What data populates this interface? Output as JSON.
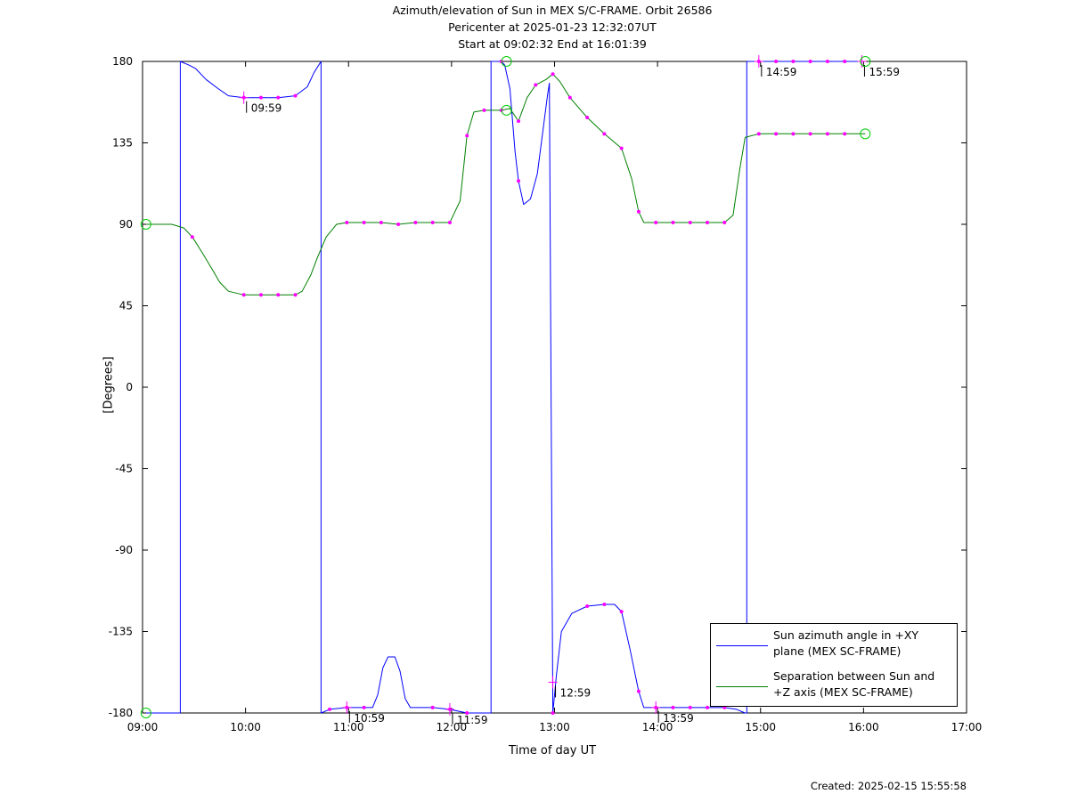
{
  "title_lines": [
    "Azimuth/elevation of Sun in MEX S/C-FRAME.  Orbit 26586",
    "Pericenter at 2025-01-23 12:32:07UT",
    "Start at 09:02:32 End at 16:01:39"
  ],
  "created": "Created: 2025-02-15 15:55:58",
  "colors": {
    "azimuth": "#0000ff",
    "separation": "#008000",
    "marker": "#ff00ff",
    "start_end": "#00cc00"
  },
  "chart_data": {
    "type": "line",
    "xlabel": "Time of day UT",
    "ylabel": "[Degrees]",
    "xlim": [
      "09:00",
      "17:00"
    ],
    "ylim": [
      -180,
      180
    ],
    "x_ticks": [
      "09:00",
      "10:00",
      "11:00",
      "12:00",
      "13:00",
      "14:00",
      "15:00",
      "16:00",
      "17:00"
    ],
    "y_ticks": [
      "180",
      "135",
      "90",
      "45",
      "0",
      "-45",
      "-90",
      "-135",
      "-180"
    ],
    "grid": false,
    "legend_position": "bottom-right",
    "series": [
      {
        "name": "Sun azimuth angle in +XY plane (MEX SC-FRAME)",
        "legend_lines": [
          "Sun azimuth angle in +XY",
          "plane (MEX SC-FRAME)"
        ],
        "color": "#0000ff",
        "points": [
          [
            "09:02",
            -180
          ],
          [
            "09:16",
            -180
          ],
          [
            "09:20",
            -180
          ],
          [
            "09:22",
            -180
          ],
          [
            "09:22",
            180
          ],
          [
            "09:27",
            178
          ],
          [
            "09:31",
            176
          ],
          [
            "09:37",
            170
          ],
          [
            "09:44",
            165
          ],
          [
            "09:50",
            161
          ],
          [
            "09:59",
            160
          ],
          [
            "10:09",
            160
          ],
          [
            "10:19",
            160
          ],
          [
            "10:29",
            161
          ],
          [
            "10:36",
            166
          ],
          [
            "10:40",
            174
          ],
          [
            "10:44",
            180
          ],
          [
            "10:44",
            -180
          ],
          [
            "10:49",
            -178
          ],
          [
            "10:59",
            -177
          ],
          [
            "11:09",
            -177
          ],
          [
            "11:14",
            -177
          ],
          [
            "11:17",
            -170
          ],
          [
            "11:20",
            -155
          ],
          [
            "11:23",
            -149
          ],
          [
            "11:27",
            -149
          ],
          [
            "11:30",
            -157
          ],
          [
            "11:33",
            -172
          ],
          [
            "11:36",
            -177
          ],
          [
            "11:49",
            -177
          ],
          [
            "11:59",
            -178
          ],
          [
            "12:09",
            -180
          ],
          [
            "12:20",
            -180
          ],
          [
            "12:23",
            -180
          ],
          [
            "12:23",
            180
          ],
          [
            "12:29",
            180
          ],
          [
            "12:31",
            178
          ],
          [
            "12:34",
            165
          ],
          [
            "12:37",
            130
          ],
          [
            "12:39",
            114
          ],
          [
            "12:42",
            101
          ],
          [
            "12:46",
            104
          ],
          [
            "12:50",
            118
          ],
          [
            "12:53",
            140
          ],
          [
            "12:56",
            162
          ],
          [
            "12:57",
            168
          ],
          [
            "12:59",
            -180
          ],
          [
            "13:01",
            -160
          ],
          [
            "13:04",
            -135
          ],
          [
            "13:10",
            -125
          ],
          [
            "13:19",
            -121
          ],
          [
            "13:29",
            -120
          ],
          [
            "13:35",
            -120
          ],
          [
            "13:39",
            -124
          ],
          [
            "13:44",
            -145
          ],
          [
            "13:49",
            -168
          ],
          [
            "13:52",
            -177
          ],
          [
            "13:59",
            -177
          ],
          [
            "14:09",
            -177
          ],
          [
            "14:19",
            -177
          ],
          [
            "14:29",
            -177
          ],
          [
            "14:39",
            -177
          ],
          [
            "14:46",
            -178
          ],
          [
            "14:51",
            -180
          ],
          [
            "14:52",
            -180
          ],
          [
            "14:52",
            180
          ],
          [
            "14:59",
            180
          ],
          [
            "15:09",
            180
          ],
          [
            "15:19",
            180
          ],
          [
            "15:29",
            180
          ],
          [
            "15:39",
            180
          ],
          [
            "15:49",
            180
          ],
          [
            "16:01",
            180
          ]
        ]
      },
      {
        "name": "Separation between Sun and +Z axis (MEX SC-FRAME)",
        "legend_lines": [
          "Separation between Sun and",
          "+Z axis (MEX SC-FRAME)"
        ],
        "color": "#008000",
        "points": [
          [
            "09:02",
            90
          ],
          [
            "09:17",
            90
          ],
          [
            "09:24",
            88
          ],
          [
            "09:29",
            83
          ],
          [
            "09:35",
            74
          ],
          [
            "09:40",
            66
          ],
          [
            "09:45",
            58
          ],
          [
            "09:50",
            53
          ],
          [
            "09:59",
            51
          ],
          [
            "10:09",
            51
          ],
          [
            "10:19",
            51
          ],
          [
            "10:29",
            51
          ],
          [
            "10:33",
            53
          ],
          [
            "10:38",
            62
          ],
          [
            "10:42",
            72
          ],
          [
            "10:47",
            83
          ],
          [
            "10:53",
            90
          ],
          [
            "10:59",
            91
          ],
          [
            "11:09",
            91
          ],
          [
            "11:19",
            91
          ],
          [
            "11:29",
            90
          ],
          [
            "11:39",
            91
          ],
          [
            "11:49",
            91
          ],
          [
            "11:59",
            91
          ],
          [
            "12:05",
            103
          ],
          [
            "12:09",
            139
          ],
          [
            "12:13",
            152
          ],
          [
            "12:19",
            153
          ],
          [
            "12:29",
            153
          ],
          [
            "12:34",
            154
          ],
          [
            "12:39",
            147
          ],
          [
            "12:44",
            160
          ],
          [
            "12:49",
            167
          ],
          [
            "12:55",
            170
          ],
          [
            "12:59",
            173
          ],
          [
            "13:03",
            169
          ],
          [
            "13:09",
            160
          ],
          [
            "13:19",
            149
          ],
          [
            "13:29",
            140
          ],
          [
            "13:39",
            132
          ],
          [
            "13:45",
            115
          ],
          [
            "13:49",
            97
          ],
          [
            "13:52",
            91
          ],
          [
            "13:59",
            91
          ],
          [
            "14:09",
            91
          ],
          [
            "14:19",
            91
          ],
          [
            "14:29",
            91
          ],
          [
            "14:39",
            91
          ],
          [
            "14:44",
            95
          ],
          [
            "14:48",
            121
          ],
          [
            "14:51",
            138
          ],
          [
            "14:59",
            140
          ],
          [
            "15:09",
            140
          ],
          [
            "15:19",
            140
          ],
          [
            "15:29",
            140
          ],
          [
            "15:39",
            140
          ],
          [
            "15:49",
            140
          ],
          [
            "16:01",
            140
          ]
        ]
      }
    ],
    "annotations": [
      {
        "label": "09:59",
        "x": "09:59",
        "y": 160
      },
      {
        "label": "10:59",
        "x": "10:59",
        "y": -177
      },
      {
        "label": "11:59",
        "x": "11:59",
        "y": -178
      },
      {
        "label": "12:59",
        "x": "12:59",
        "y": -163
      },
      {
        "label": "13:59",
        "x": "13:59",
        "y": -177
      },
      {
        "label": "14:59",
        "x": "14:59",
        "y": 180
      },
      {
        "label": "15:59",
        "x": "15:59",
        "y": 180
      }
    ],
    "start_end_markers": [
      {
        "x": "09:02",
        "y": 90
      },
      {
        "x": "09:02",
        "y": -180
      },
      {
        "x": "12:32",
        "y": 180
      },
      {
        "x": "12:32",
        "y": 153
      },
      {
        "x": "16:01",
        "y": 140
      },
      {
        "x": "16:01",
        "y": 180
      }
    ]
  }
}
